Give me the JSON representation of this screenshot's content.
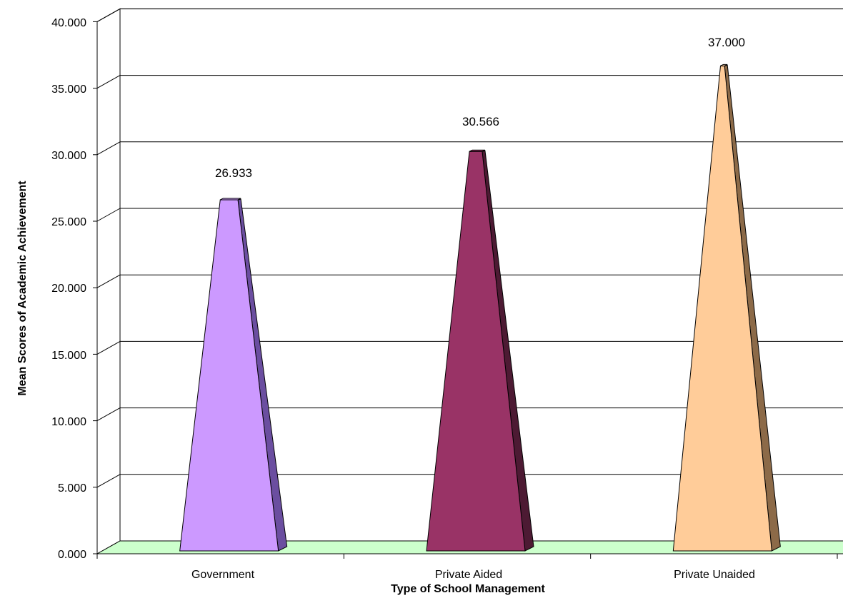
{
  "chart_data": {
    "type": "bar",
    "bar_shape": "pyramid-3d",
    "categories": [
      "Government",
      "Private Aided",
      "Private Unaided"
    ],
    "values": [
      26.933,
      30.566,
      37.0
    ],
    "data_labels": [
      "26.933",
      "30.566",
      "37.000"
    ],
    "xlabel": "Type of School Management",
    "ylabel": "Mean Scores of Academic Achievement",
    "ylim": [
      0,
      40
    ],
    "y_ticks": [
      "0.000",
      "5.000",
      "10.000",
      "15.000",
      "20.000",
      "25.000",
      "30.000",
      "35.000",
      "40.000"
    ],
    "grid": true,
    "colors": {
      "bars": [
        "#cc99ff",
        "#993366",
        "#ffcc99"
      ],
      "bars_side": [
        "#6b4ea0",
        "#4d1a33",
        "#8c6a48"
      ],
      "floor": "#ccffcc"
    }
  }
}
